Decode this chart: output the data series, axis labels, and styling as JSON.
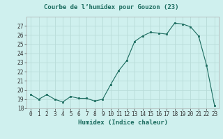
{
  "x": [
    0,
    1,
    2,
    3,
    4,
    5,
    6,
    7,
    8,
    9,
    10,
    11,
    12,
    13,
    14,
    15,
    16,
    17,
    18,
    19,
    20,
    21,
    22,
    23
  ],
  "y": [
    19.5,
    19.0,
    19.5,
    19.0,
    18.7,
    19.3,
    19.1,
    19.1,
    18.8,
    19.0,
    20.6,
    22.1,
    23.2,
    25.3,
    25.9,
    26.3,
    26.2,
    26.1,
    27.3,
    27.2,
    26.9,
    25.9,
    22.7,
    18.3
  ],
  "title": "Courbe de l’humidex pour Gouzon (23)",
  "xlabel": "Humidex (Indice chaleur)",
  "ylabel": "",
  "bg_color": "#cff0ee",
  "grid_color": "#b8dbd8",
  "line_color": "#1a6b5e",
  "marker_color": "#1a6b5e",
  "ylim": [
    18,
    28
  ],
  "yticks": [
    18,
    19,
    20,
    21,
    22,
    23,
    24,
    25,
    26,
    27
  ],
  "xlim": [
    -0.5,
    23.5
  ],
  "title_fontsize": 6.5,
  "label_fontsize": 6.5,
  "tick_fontsize": 5.5
}
